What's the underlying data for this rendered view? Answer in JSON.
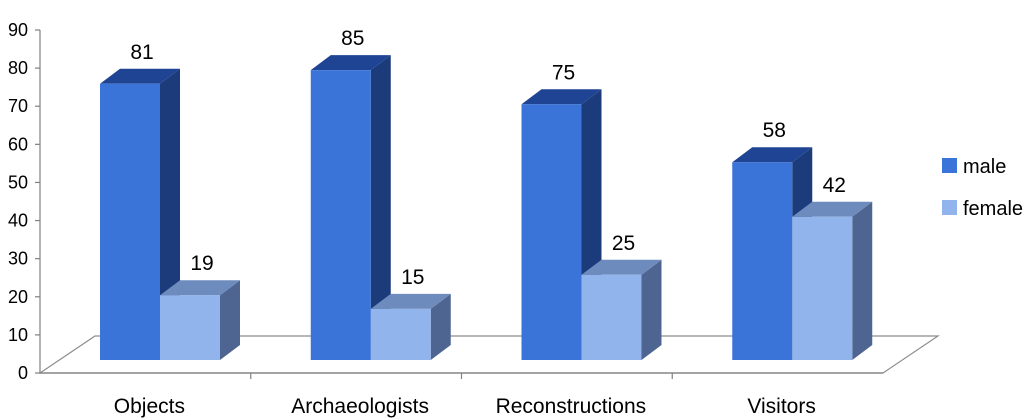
{
  "chart_data": {
    "type": "bar",
    "title": "",
    "xlabel": "",
    "ylabel": "",
    "categories": [
      "Objects",
      "Archaeologists",
      "Reconstructions",
      "Visitors"
    ],
    "series": [
      {
        "name": "male",
        "values": [
          81,
          85,
          75,
          58
        ],
        "color": "#3a74d8"
      },
      {
        "name": "female",
        "values": [
          19,
          15,
          25,
          42
        ],
        "color": "#92b4ec"
      }
    ],
    "ylim": [
      0,
      90
    ],
    "yticks": [
      0,
      10,
      20,
      30,
      40,
      50,
      60,
      70,
      80,
      90
    ],
    "grid": false,
    "legend_position": "right",
    "style": "3d-clustered-column"
  }
}
